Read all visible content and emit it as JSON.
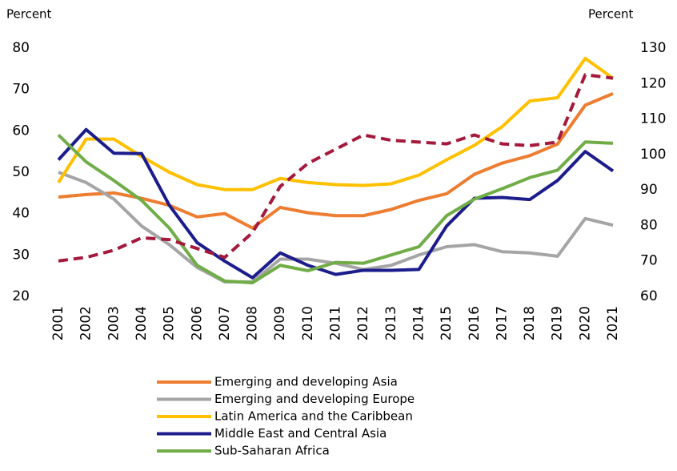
{
  "chart_data": {
    "type": "line",
    "ylabel": "Percent",
    "y2label": "Percent",
    "categories": [
      "2001",
      "2002",
      "2003",
      "2004",
      "2005",
      "2006",
      "2007",
      "2008",
      "2009",
      "2010",
      "2011",
      "2012",
      "2013",
      "2014",
      "2015",
      "2016",
      "2017",
      "2018",
      "2019",
      "2020",
      "2021"
    ],
    "ylim": [
      20,
      80
    ],
    "yticks": [
      20,
      30,
      40,
      50,
      60,
      70,
      80
    ],
    "y2lim": [
      60,
      130
    ],
    "y2ticks": [
      60,
      70,
      80,
      90,
      100,
      110,
      120,
      130
    ],
    "grid": false,
    "series": [
      {
        "name": "Emerging and developing Asia",
        "color": "#ed7d31",
        "values": [
          44,
          44.6,
          45,
          43.7,
          42,
          39.2,
          40,
          36.5,
          41.5,
          40.2,
          39.5,
          39.5,
          41,
          43.2,
          44.8,
          49.5,
          52.2,
          54,
          56.8,
          66.2,
          69
        ]
      },
      {
        "name": "Emerging and developing Europe",
        "color": "#a5a5a5",
        "values": [
          50,
          47.5,
          43.5,
          37,
          32.5,
          27,
          23.5,
          23.5,
          29,
          29,
          28,
          26.5,
          27.5,
          30,
          32,
          32.5,
          30.8,
          30.5,
          29.7,
          38.8,
          37.2
        ]
      },
      {
        "name": "Latin America and the Caribbean",
        "color": "#ffc000",
        "values": [
          47.5,
          58,
          58,
          53.8,
          50,
          47,
          45.8,
          45.8,
          48.5,
          47.5,
          47,
          46.8,
          47.2,
          49.3,
          53,
          56.5,
          61,
          67.2,
          68,
          77.5,
          72.7
        ]
      },
      {
        "name": "Middle East and Central Asia",
        "color": "#1c1c8c",
        "values": [
          53,
          60.3,
          54.6,
          54.5,
          42,
          33,
          28.5,
          24.5,
          30.5,
          27.5,
          25.3,
          26.3,
          26.3,
          26.5,
          37,
          43.7,
          43.9,
          43.4,
          48,
          55,
          50.3
        ]
      },
      {
        "name": "Sub-Saharan Africa",
        "color": "#70ad47",
        "values": [
          59,
          52.5,
          48,
          43.2,
          36.5,
          27.5,
          23.7,
          23.3,
          27.5,
          26.2,
          28.2,
          28,
          30,
          32,
          39.5,
          43.5,
          46,
          48.7,
          50.5,
          57.3,
          57
        ]
      },
      {
        "color": "#a51a3c",
        "axis": "y2",
        "dashed": true,
        "values": [
          70,
          71,
          73,
          76.5,
          76,
          73.5,
          71,
          78,
          91,
          97.5,
          101.5,
          105.5,
          104,
          103.5,
          103,
          105.5,
          103,
          102.5,
          103.5,
          122.5,
          121.5
        ]
      }
    ]
  }
}
